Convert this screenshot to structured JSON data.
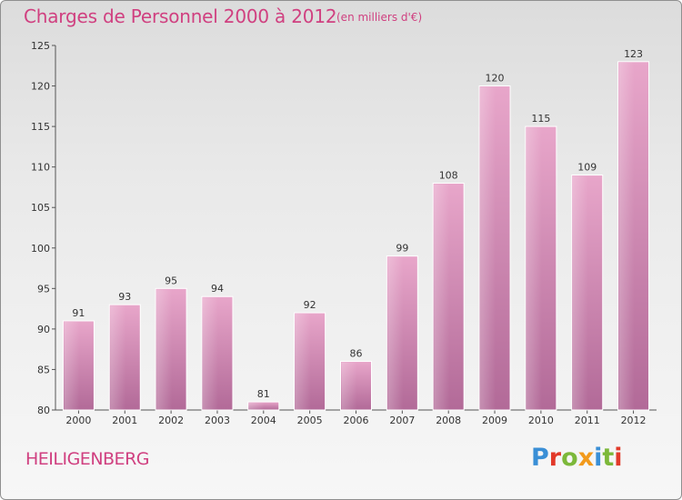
{
  "header": {
    "title": "Charges de Personnel 2000 à 2012",
    "subtitle": "(en milliers d'€)"
  },
  "footer": {
    "town": "HEILIGENBERG",
    "logo": "Proxiti"
  },
  "colors": {
    "title": "#d04080",
    "bar_light": "#e8a6ca",
    "bar_dark": "#b26a98",
    "logo_letters": [
      "#3a8fd6",
      "#e23a2a",
      "#7cb83a",
      "#f29a1c",
      "#3a8fd6",
      "#7cb83a",
      "#e23a2a"
    ]
  },
  "chart_data": {
    "type": "bar",
    "title": "Charges de Personnel 2000 à 2012",
    "categories": [
      "2000",
      "2001",
      "2002",
      "2003",
      "2004",
      "2005",
      "2006",
      "2007",
      "2008",
      "2009",
      "2010",
      "2011",
      "2012"
    ],
    "values": [
      91,
      93,
      95,
      94,
      81,
      92,
      86,
      99,
      108,
      120,
      115,
      109,
      123
    ],
    "ylim": [
      80,
      125
    ],
    "yticks": [
      80,
      85,
      90,
      95,
      100,
      105,
      110,
      115,
      120,
      125
    ],
    "grid": false,
    "data_labels": true
  }
}
